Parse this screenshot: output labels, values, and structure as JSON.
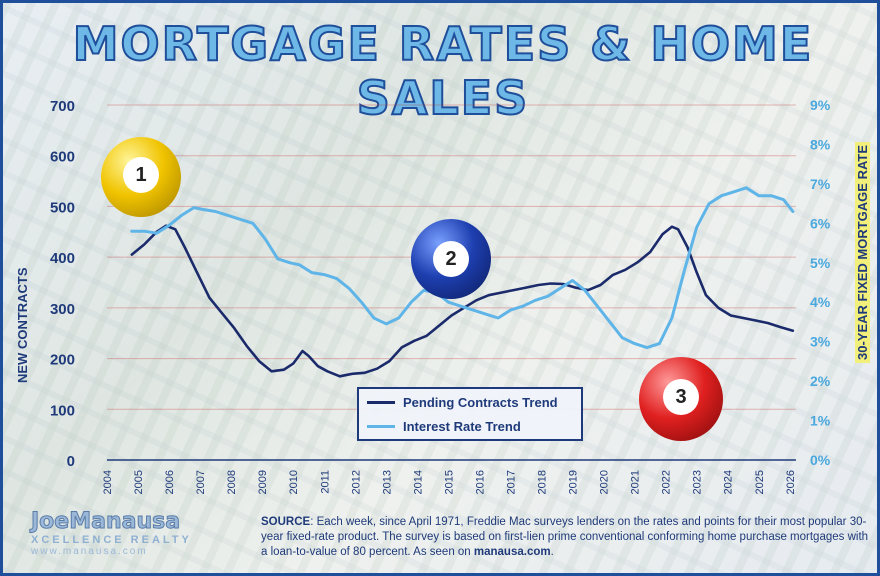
{
  "header": {
    "title": "MORTGAGE RATES & HOME SALES"
  },
  "chart_data": {
    "type": "line",
    "ylabel_left": "NEW CONTRACTS",
    "ylabel_right": "30-YEAR FIXED MORTGAGE RATE",
    "ylim_left": [
      0,
      700
    ],
    "ylim_right": [
      0,
      9
    ],
    "xlim": [
      2004,
      2026.2
    ],
    "y_ticks_left": [
      "0",
      "100",
      "200",
      "300",
      "400",
      "500",
      "600",
      "700"
    ],
    "y_ticks_right": [
      "0%",
      "1%",
      "2%",
      "3%",
      "4%",
      "5%",
      "6%",
      "7%",
      "8%",
      "9%"
    ],
    "x_ticks": [
      "2004",
      "2005",
      "2006",
      "2007",
      "2008",
      "2009",
      "2010",
      "2011",
      "2012",
      "2013",
      "2014",
      "2015",
      "2016",
      "2017",
      "2018",
      "2019",
      "2020",
      "2021",
      "2022",
      "2023",
      "2024",
      "2025",
      "2026"
    ],
    "grid": true,
    "series": [
      {
        "name": "Pending Contracts Trend",
        "axis": "left",
        "color": "#1b2a6b",
        "x": [
          2004.8,
          2005.2,
          2005.6,
          2005.9,
          2006.2,
          2006.5,
          2006.9,
          2007.3,
          2007.7,
          2008.1,
          2008.5,
          2008.9,
          2009.3,
          2009.7,
          2010.0,
          2010.3,
          2010.5,
          2010.8,
          2011.1,
          2011.5,
          2011.9,
          2012.3,
          2012.7,
          2013.1,
          2013.5,
          2013.9,
          2014.3,
          2014.7,
          2015.1,
          2015.5,
          2015.9,
          2016.3,
          2016.7,
          2017.1,
          2017.5,
          2017.9,
          2018.3,
          2018.7,
          2019.1,
          2019.5,
          2019.9,
          2020.3,
          2020.7,
          2021.1,
          2021.5,
          2021.9,
          2022.2,
          2022.4,
          2022.7,
          2023.0,
          2023.3,
          2023.7,
          2024.1,
          2024.5,
          2024.9,
          2025.3,
          2025.7,
          2026.1
        ],
        "y": [
          405,
          425,
          450,
          462,
          455,
          420,
          370,
          320,
          290,
          260,
          225,
          195,
          175,
          178,
          190,
          215,
          205,
          185,
          175,
          165,
          170,
          172,
          180,
          195,
          222,
          235,
          245,
          265,
          285,
          300,
          315,
          325,
          330,
          335,
          340,
          345,
          348,
          347,
          340,
          335,
          345,
          365,
          375,
          390,
          410,
          445,
          460,
          455,
          420,
          370,
          325,
          300,
          285,
          280,
          275,
          270,
          262,
          255
        ]
      },
      {
        "name": "Interest Rate Trend",
        "axis": "right",
        "color": "#5fb4e8",
        "x": [
          2004.8,
          2005.2,
          2005.6,
          2006.0,
          2006.4,
          2006.8,
          2007.1,
          2007.5,
          2007.9,
          2008.3,
          2008.7,
          2009.1,
          2009.5,
          2009.9,
          2010.2,
          2010.6,
          2011.0,
          2011.4,
          2011.8,
          2012.2,
          2012.6,
          2013.0,
          2013.4,
          2013.8,
          2014.2,
          2014.6,
          2015.0,
          2015.4,
          2015.8,
          2016.2,
          2016.6,
          2017.0,
          2017.4,
          2017.8,
          2018.2,
          2018.6,
          2019.0,
          2019.4,
          2019.8,
          2020.2,
          2020.6,
          2021.0,
          2021.4,
          2021.8,
          2022.2,
          2022.6,
          2023.0,
          2023.4,
          2023.8,
          2024.2,
          2024.6,
          2025.0,
          2025.4,
          2025.8,
          2026.1
        ],
        "y": [
          5.8,
          5.8,
          5.75,
          5.95,
          6.2,
          6.4,
          6.35,
          6.3,
          6.2,
          6.1,
          6.0,
          5.6,
          5.1,
          5.0,
          4.95,
          4.75,
          4.7,
          4.6,
          4.35,
          4.0,
          3.6,
          3.45,
          3.6,
          4.0,
          4.3,
          4.25,
          4.0,
          3.9,
          3.8,
          3.7,
          3.6,
          3.8,
          3.9,
          4.05,
          4.15,
          4.35,
          4.55,
          4.3,
          3.9,
          3.5,
          3.1,
          2.95,
          2.85,
          2.95,
          3.6,
          4.8,
          5.9,
          6.5,
          6.7,
          6.8,
          6.9,
          6.7,
          6.7,
          6.6,
          6.3
        ]
      }
    ]
  },
  "legend": {
    "items": [
      {
        "label": "Pending Contracts Trend",
        "color": "#1b2a6b"
      },
      {
        "label": "Interest Rate Trend",
        "color": "#5fb4e8"
      }
    ]
  },
  "badges": [
    {
      "number": "1",
      "color": "#f0c400"
    },
    {
      "number": "2",
      "color": "#1e3fb0"
    },
    {
      "number": "3",
      "color": "#e02020"
    }
  ],
  "source": {
    "label": "SOURCE",
    "text": ": Each week, since April 1971, Freddie Mac surveys lenders on the rates and points for their most popular 30-year fixed-rate product. The survey is based on first-lien prime conventional conforming home purchase mortgages with a loan-to-value of 80 percent. As seen on ",
    "link": "manausa.com",
    "end": "."
  },
  "logo": {
    "name": "JoeManausa",
    "sub": "XCELLENCE REALTY",
    "url": "www.manausa.com"
  }
}
